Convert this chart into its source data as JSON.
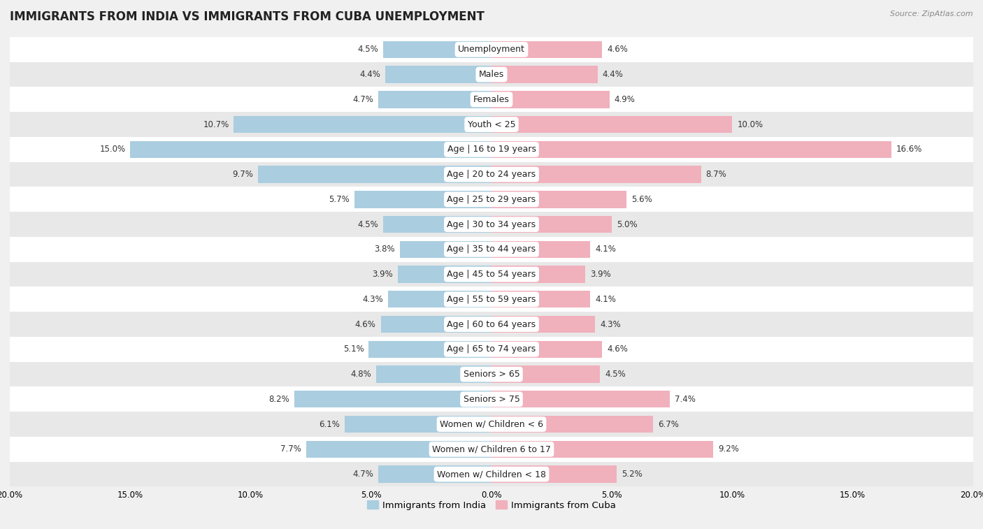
{
  "title": "IMMIGRANTS FROM INDIA VS IMMIGRANTS FROM CUBA UNEMPLOYMENT",
  "source": "Source: ZipAtlas.com",
  "categories": [
    "Unemployment",
    "Males",
    "Females",
    "Youth < 25",
    "Age | 16 to 19 years",
    "Age | 20 to 24 years",
    "Age | 25 to 29 years",
    "Age | 30 to 34 years",
    "Age | 35 to 44 years",
    "Age | 45 to 54 years",
    "Age | 55 to 59 years",
    "Age | 60 to 64 years",
    "Age | 65 to 74 years",
    "Seniors > 65",
    "Seniors > 75",
    "Women w/ Children < 6",
    "Women w/ Children 6 to 17",
    "Women w/ Children < 18"
  ],
  "india_values": [
    4.5,
    4.4,
    4.7,
    10.7,
    15.0,
    9.7,
    5.7,
    4.5,
    3.8,
    3.9,
    4.3,
    4.6,
    5.1,
    4.8,
    8.2,
    6.1,
    7.7,
    4.7
  ],
  "cuba_values": [
    4.6,
    4.4,
    4.9,
    10.0,
    16.6,
    8.7,
    5.6,
    5.0,
    4.1,
    3.9,
    4.1,
    4.3,
    4.6,
    4.5,
    7.4,
    6.7,
    9.2,
    5.2
  ],
  "india_color": "#aacde0",
  "cuba_color": "#f0b0bc",
  "india_label": "Immigrants from India",
  "cuba_label": "Immigrants from Cuba",
  "xlim": 20.0,
  "bar_height": 0.68,
  "bg_color": "#f0f0f0",
  "row_white_color": "#ffffff",
  "row_gray_color": "#e8e8e8",
  "title_fontsize": 12,
  "label_fontsize": 9,
  "value_fontsize": 8.5,
  "source_fontsize": 8,
  "axis_fontsize": 8.5
}
